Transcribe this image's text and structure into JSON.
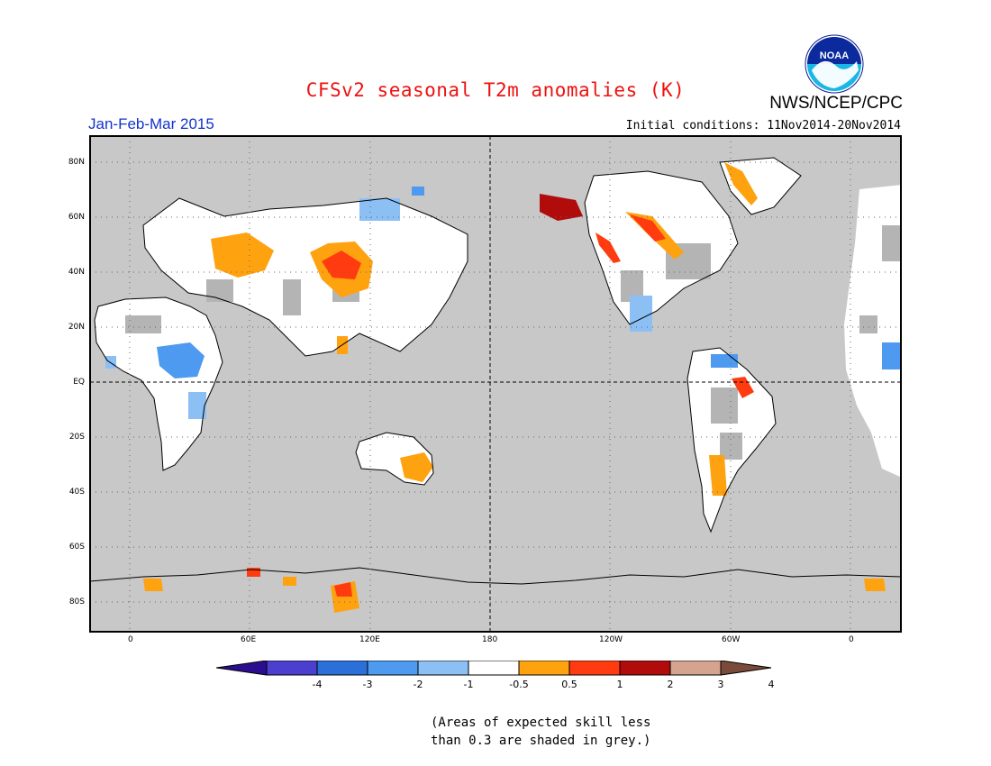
{
  "header": {
    "title": "CFSv2 seasonal T2m anomalies (K)",
    "organization": "NWS/NCEP/CPC",
    "logo_text": "NOAA",
    "period": "Jan-Feb-Mar 2015",
    "initial_conditions": "Initial conditions: 11Nov2014-20Nov2014"
  },
  "map": {
    "projection": "cylindrical-equidistant",
    "central_longitude": 180,
    "lat_labels": [
      "80N",
      "60N",
      "40N",
      "20N",
      "EQ",
      "20S",
      "40S",
      "60S",
      "80S"
    ],
    "lon_labels": [
      "0",
      "60E",
      "120E",
      "180",
      "120W",
      "60W",
      "0"
    ],
    "background_color": "#c8c8c8"
  },
  "colorbar": {
    "labels": [
      "-4",
      "-3",
      "-2",
      "-1",
      "-0.5",
      "0.5",
      "1",
      "2",
      "3",
      "4"
    ],
    "colors": [
      "#2a0e8f",
      "#4c3fcf",
      "#2b70d8",
      "#4d9af0",
      "#8cc0f5",
      "#ffffff",
      "#ffa20f",
      "#ff3b0f",
      "#b10c0c",
      "#d4a48f",
      "#7a4a3a"
    ]
  },
  "note": {
    "line1": "(Areas of expected skill less",
    "line2": "than 0.3 are shaded in grey.)"
  }
}
